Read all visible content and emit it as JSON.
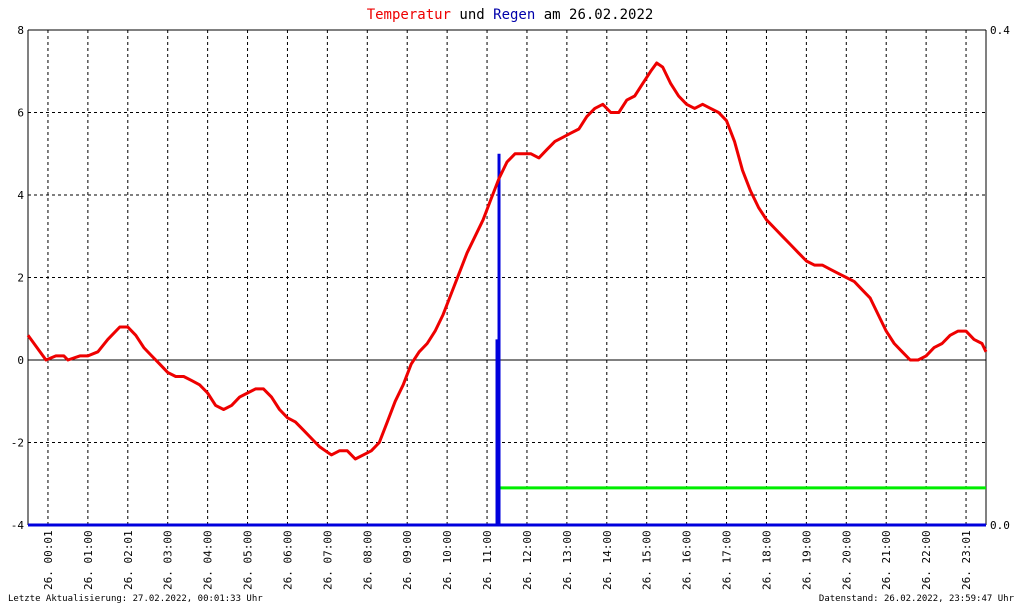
{
  "title": {
    "part1": "Temperatur",
    "part2": " und ",
    "part3": "Regen",
    "part4": " am 26.02.2022"
  },
  "footer": {
    "left": "Letzte Aktualisierung: 27.02.2022, 00:01:33 Uhr",
    "right": "Datenstand: 26.02.2022, 23:59:47 Uhr"
  },
  "colors": {
    "temperature": "#ee0000",
    "rain": "#0000dd",
    "rain_total": "#00ee00",
    "title_part1": "#ee0000",
    "title_part3": "#0000aa",
    "title_other": "#000000"
  },
  "chart_data": {
    "type": "line",
    "x_unit": "hours",
    "xlim": [
      0,
      24
    ],
    "ylim_left": [
      -4,
      8
    ],
    "ylim_right": [
      0,
      0.4
    ],
    "y_ticks_left": [
      "8",
      "6",
      "4",
      "2",
      "0",
      "-2",
      "-4"
    ],
    "y_ticks_right": [
      "0.4",
      "0.0"
    ],
    "x_ticks": [
      {
        "day": "26.",
        "time": "00:01"
      },
      {
        "day": "26.",
        "time": "01:00"
      },
      {
        "day": "26.",
        "time": "02:01"
      },
      {
        "day": "26.",
        "time": "03:00"
      },
      {
        "day": "26.",
        "time": "04:00"
      },
      {
        "day": "26.",
        "time": "05:00"
      },
      {
        "day": "26.",
        "time": "06:00"
      },
      {
        "day": "26.",
        "time": "07:00"
      },
      {
        "day": "26.",
        "time": "08:00"
      },
      {
        "day": "26.",
        "time": "09:00"
      },
      {
        "day": "26.",
        "time": "10:00"
      },
      {
        "day": "26.",
        "time": "11:00"
      },
      {
        "day": "26.",
        "time": "12:00"
      },
      {
        "day": "26.",
        "time": "13:00"
      },
      {
        "day": "26.",
        "time": "14:00"
      },
      {
        "day": "26.",
        "time": "15:00"
      },
      {
        "day": "26.",
        "time": "16:00"
      },
      {
        "day": "26.",
        "time": "17:00"
      },
      {
        "day": "26.",
        "time": "18:00"
      },
      {
        "day": "26.",
        "time": "19:00"
      },
      {
        "day": "26.",
        "time": "20:00"
      },
      {
        "day": "26.",
        "time": "21:00"
      },
      {
        "day": "26.",
        "time": "22:00"
      },
      {
        "day": "26.",
        "time": "23:01"
      }
    ],
    "grid": true,
    "temperature": {
      "axis": "left",
      "x": [
        0,
        0.15,
        0.3,
        0.45,
        0.7,
        0.9,
        1.0,
        1.3,
        1.5,
        1.75,
        2.0,
        2.3,
        2.5,
        2.7,
        2.9,
        3.1,
        3.3,
        3.5,
        3.7,
        3.9,
        4.1,
        4.3,
        4.5,
        4.7,
        4.9,
        5.1,
        5.3,
        5.5,
        5.7,
        5.9,
        6.1,
        6.3,
        6.5,
        6.7,
        6.9,
        7.2,
        7.3,
        7.45,
        7.6,
        7.8,
        8.0,
        8.2,
        8.4,
        8.6,
        8.8,
        9.0,
        9.2,
        9.4,
        9.6,
        9.8,
        10.0,
        10.2,
        10.4,
        10.6,
        10.8,
        11.0,
        11.2,
        11.4,
        11.6,
        11.8,
        12.0,
        12.2,
        12.4,
        12.6,
        12.8,
        13.0,
        13.2,
        13.4,
        13.6,
        13.8,
        14.0,
        14.2,
        14.4,
        14.6,
        14.8,
        15.0,
        15.2,
        15.4,
        15.6,
        15.75,
        15.9,
        16.1,
        16.3,
        16.5,
        16.7,
        16.9,
        17.1,
        17.3,
        17.5,
        17.7,
        17.9,
        18.1,
        18.3,
        18.5,
        18.7,
        18.9,
        19.1,
        19.3,
        19.5,
        19.7,
        19.9,
        20.1,
        20.3,
        20.5,
        20.7,
        20.9,
        21.1,
        21.3,
        21.5,
        21.7,
        21.9,
        22.1,
        22.3,
        22.5,
        22.7,
        22.9,
        23.1,
        23.3,
        23.5,
        23.7,
        23.9,
        24.0
      ],
      "y": [
        0.6,
        0.4,
        0.2,
        0.0,
        0.1,
        0.1,
        0.0,
        0.1,
        0.1,
        0.2,
        0.5,
        0.8,
        0.8,
        0.6,
        0.3,
        0.1,
        -0.1,
        -0.3,
        -0.4,
        -0.4,
        -0.5,
        -0.6,
        -0.8,
        -1.1,
        -1.2,
        -1.1,
        -0.9,
        -0.8,
        -0.7,
        -0.7,
        -0.9,
        -1.2,
        -1.4,
        -1.5,
        -1.7,
        -2.0,
        -2.1,
        -2.2,
        -2.3,
        -2.2,
        -2.2,
        -2.4,
        -2.3,
        -2.2,
        -2.0,
        -1.5,
        -1.0,
        -0.6,
        -0.1,
        0.2,
        0.4,
        0.7,
        1.1,
        1.6,
        2.1,
        2.6,
        3.0,
        3.4,
        3.9,
        4.4,
        4.8,
        5.0,
        5.0,
        5.0,
        4.9,
        5.1,
        5.3,
        5.4,
        5.5,
        5.6,
        5.9,
        6.1,
        6.2,
        6.0,
        6.0,
        6.3,
        6.4,
        6.7,
        7.0,
        7.2,
        7.1,
        6.7,
        6.4,
        6.2,
        6.1,
        6.2,
        6.1,
        6.0,
        5.8,
        5.3,
        4.6,
        4.1,
        3.7,
        3.4,
        3.2,
        3.0,
        2.8,
        2.6,
        2.4,
        2.3,
        2.3,
        2.2,
        2.1,
        2.0,
        1.9,
        1.7,
        1.5,
        1.1,
        0.7,
        0.4,
        0.2,
        0.0,
        0.0,
        0.1,
        0.3,
        0.4,
        0.6,
        0.7,
        0.7,
        0.5,
        0.4,
        0.2
      ]
    },
    "rain_events": [
      {
        "x": 11.8,
        "value": 0.3
      },
      {
        "x": 11.75,
        "value": 0.15
      }
    ],
    "rain_total": {
      "axis": "right",
      "x_start": 11.8,
      "x_end": 24,
      "value": 0.03
    },
    "rain_baseline": {
      "axis": "right",
      "value": 0.0
    }
  }
}
